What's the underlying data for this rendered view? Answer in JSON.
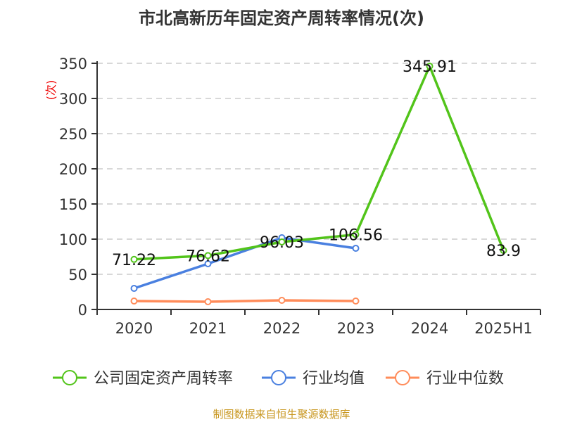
{
  "chart_data": {
    "type": "line",
    "title": "市北高新历年固定资产周转率情况(次)",
    "ylabel": "(次)",
    "categories": [
      "2020",
      "2021",
      "2022",
      "2023",
      "2024",
      "2025H1"
    ],
    "ylim": [
      0,
      350
    ],
    "yticks": [
      0,
      50,
      100,
      150,
      200,
      250,
      300,
      350
    ],
    "grid": true,
    "legend_position": "bottom",
    "series": [
      {
        "name": "公司固定资产周转率",
        "color": "#52c41a",
        "values": [
          71.22,
          76.62,
          96.03,
          106.56,
          345.91,
          83.9
        ],
        "labels": [
          "71.22",
          "76.62",
          "96.03",
          "106.56",
          "345.91",
          "83.9"
        ]
      },
      {
        "name": "行业均值",
        "color": "#4a80e0",
        "values": [
          30,
          65,
          102,
          87,
          null,
          null
        ]
      },
      {
        "name": "行业中位数",
        "color": "#ff8c5a",
        "values": [
          12,
          11,
          13,
          12,
          null,
          null
        ]
      }
    ]
  },
  "source": "制图数据来自恒生聚源数据库"
}
